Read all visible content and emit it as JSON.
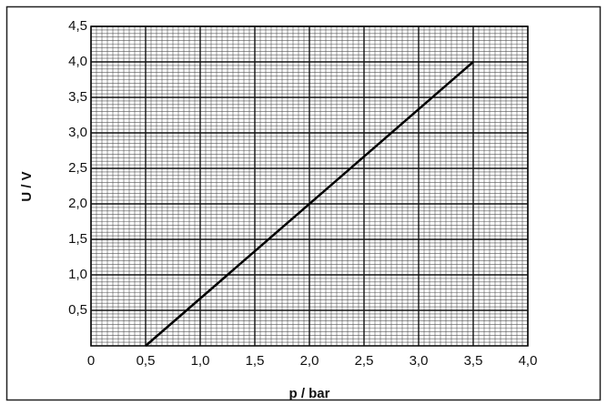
{
  "chart_data": {
    "type": "line",
    "xlabel": "p / bar",
    "ylabel": "U / V",
    "x": [
      0.5,
      3.5
    ],
    "values": [
      0,
      4.0
    ],
    "color": "#000000",
    "xlim": [
      0,
      4.0
    ],
    "ylim": [
      0,
      4.5
    ],
    "xticks": [
      0,
      {
        "value": 0.5,
        "label": "0,5"
      },
      {
        "value": 1.0,
        "label": "1,0"
      },
      {
        "value": 1.5,
        "label": "1,5"
      },
      {
        "value": 2.0,
        "label": "2,0"
      },
      {
        "value": 2.5,
        "label": "2,5"
      },
      {
        "value": 3.0,
        "label": "3,0"
      },
      {
        "value": 3.5,
        "label": "3,5"
      },
      {
        "value": 4.0,
        "label": "4,0"
      }
    ],
    "yticks": [
      {
        "value": 0.5,
        "label": "0,5"
      },
      {
        "value": 1.0,
        "label": "1,0"
      },
      {
        "value": 1.5,
        "label": "1,5"
      },
      {
        "value": 2.0,
        "label": "2,0"
      },
      {
        "value": 2.5,
        "label": "2,5"
      },
      {
        "value": 3.0,
        "label": "3,0"
      },
      {
        "value": 3.5,
        "label": "3,5"
      },
      {
        "value": 4.0,
        "label": "4,0"
      },
      {
        "value": 4.5,
        "label": "4,5"
      }
    ],
    "grid": true
  }
}
